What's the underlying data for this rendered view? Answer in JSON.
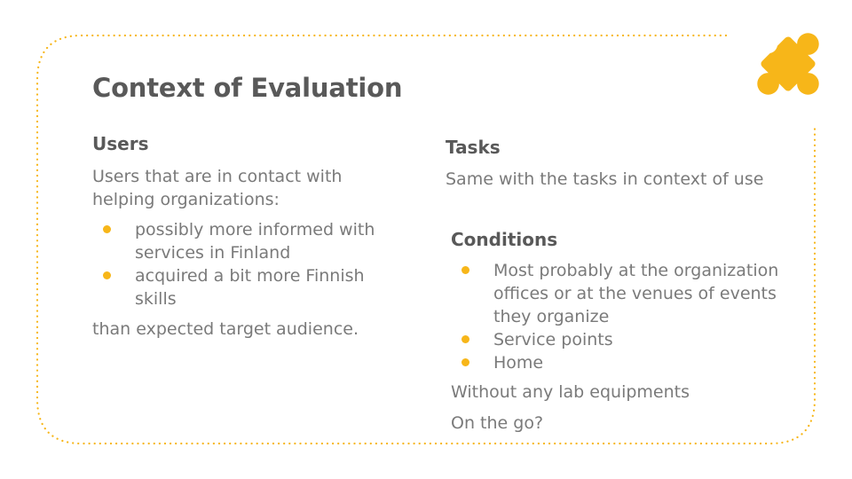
{
  "slide": {
    "title": "Context of Evaluation",
    "accent_color": "#f7b619",
    "icon": "puzzle-piece-icon"
  },
  "users": {
    "heading": "Users",
    "intro": "Users that are in contact with helping organizations:",
    "items": [
      {
        "text": "possibly more informed with services in Finland"
      },
      {
        "text": "acquired a bit more Finnish skills"
      }
    ],
    "outro": "than expected target audience."
  },
  "tasks": {
    "heading": "Tasks",
    "body": "Same with the tasks in context of use"
  },
  "conditions": {
    "heading": "Conditions",
    "items": [
      {
        "text": "Most probably at the organization offices or at the venues of events they organize"
      },
      {
        "text": "Service points"
      },
      {
        "text": "Home"
      }
    ],
    "footer_1": "Without any lab equipments",
    "footer_2": "On the go?"
  }
}
